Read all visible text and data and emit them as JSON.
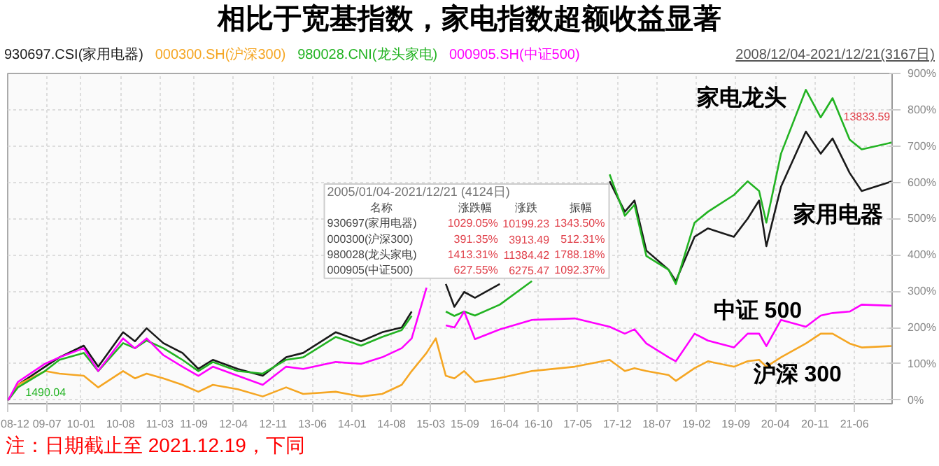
{
  "chart_data": {
    "type": "line",
    "title": "相比于宽基指数，家电指数超额收益显著",
    "x": [
      "2008-12-04",
      "2009-01-25",
      "2009-06-20",
      "2009-09-06",
      "2010-01-15",
      "2010-04-03",
      "2010-08-15",
      "2010-10-18",
      "2010-12-20",
      "2011-03-20",
      "2011-07-01",
      "2011-09-25",
      "2011-12-12",
      "2012-04-24",
      "2012-09-06",
      "2013-01-10",
      "2013-04-12",
      "2013-10-04",
      "2014-02-18",
      "2014-06-12",
      "2014-09-25",
      "2014-11-18",
      "2015-02-06",
      "2015-03-28",
      "2015-05-21",
      "2015-07-06",
      "2015-08-28",
      "2015-10-25",
      "2016-03-07",
      "2016-08-27",
      "2017-04-15",
      "2017-10-20",
      "2018-01-10",
      "2018-03-03",
      "2018-05-06",
      "2018-09-03",
      "2018-10-12",
      "2019-01-21",
      "2019-04-03",
      "2019-08-21",
      "2019-11-03",
      "2020-01-04",
      "2020-02-12",
      "2020-05-01",
      "2020-09-12",
      "2020-12-01",
      "2021-02-03",
      "2021-05-06",
      "2021-07-10",
      "2021-12-21"
    ],
    "series": [
      {
        "name": "930697.CSI(家用电器)",
        "color": "#1a1a1a",
        "values": [
          0,
          42,
          92,
          118,
          150,
          92,
          187,
          162,
          198,
          157,
          130,
          86,
          111,
          86,
          67,
          118,
          130,
          187,
          162,
          187,
          200,
          244,
          null,
          null,
          320,
          257,
          298,
          282,
          320,
          null,
          null,
          603,
          519,
          550,
          412,
          359,
          328,
          450,
          473,
          450,
          500,
          550,
          424,
          588,
          740,
          679,
          721,
          626,
          576,
          603
        ]
      },
      {
        "name": "000300.SH(沪深300)",
        "color": "#f5a623",
        "values": [
          0,
          42,
          80,
          73,
          67,
          35,
          80,
          60,
          73,
          60,
          42,
          23,
          42,
          30,
          10,
          35,
          17,
          23,
          10,
          17,
          42,
          80,
          130,
          170,
          67,
          60,
          80,
          50,
          61,
          80,
          92,
          111,
          80,
          88,
          80,
          69,
          53,
          88,
          107,
          92,
          107,
          111,
          92,
          118,
          156,
          183,
          183,
          156,
          145,
          149
        ]
      },
      {
        "name": "980028.CNI(龙头家电)",
        "color": "#22b322",
        "values": [
          0,
          35,
          80,
          111,
          130,
          80,
          157,
          143,
          164,
          143,
          111,
          80,
          105,
          80,
          73,
          111,
          118,
          174,
          150,
          174,
          193,
          232,
          null,
          null,
          244,
          232,
          244,
          233,
          263,
          328,
          null,
          622,
          508,
          538,
          397,
          359,
          320,
          489,
          519,
          565,
          603,
          576,
          489,
          679,
          855,
          779,
          832,
          718,
          691,
          710
        ]
      },
      {
        "name": "000905.SH(中证500)",
        "color": "#ff00ff",
        "values": [
          0,
          50,
          100,
          118,
          143,
          80,
          170,
          143,
          170,
          124,
          92,
          67,
          92,
          67,
          42,
          92,
          86,
          105,
          100,
          118,
          143,
          170,
          310,
          null,
          206,
          200,
          244,
          168,
          195,
          221,
          225,
          202,
          183,
          195,
          156,
          118,
          107,
          183,
          164,
          145,
          183,
          183,
          149,
          221,
          202,
          233,
          240,
          244,
          263,
          260
        ]
      }
    ],
    "xlim": [
      "2008-12-01",
      "2021-12-21"
    ],
    "xticks": [
      {
        "value": "2008-12-01",
        "label": "08-12"
      },
      {
        "value": "2009-07-01",
        "label": "09-07"
      },
      {
        "value": "2010-01-01",
        "label": "10-01"
      },
      {
        "value": "2010-08-01",
        "label": "10-08"
      },
      {
        "value": "2011-03-01",
        "label": "11-03"
      },
      {
        "value": "2011-09-01",
        "label": "11-09"
      },
      {
        "value": "2012-04-01",
        "label": "12-04"
      },
      {
        "value": "2012-11-01",
        "label": "12-11"
      },
      {
        "value": "2013-06-01",
        "label": "13-06"
      },
      {
        "value": "2014-01-01",
        "label": "14-01"
      },
      {
        "value": "2014-08-01",
        "label": "14-08"
      },
      {
        "value": "2015-03-01",
        "label": "15-03"
      },
      {
        "value": "2015-09-01",
        "label": "15-09"
      },
      {
        "value": "2016-04-01",
        "label": "16-04"
      },
      {
        "value": "2016-10-01",
        "label": "16-10"
      },
      {
        "value": "2017-05-01",
        "label": "17-05"
      },
      {
        "value": "2017-12-01",
        "label": "17-12"
      },
      {
        "value": "2018-07-01",
        "label": "18-07"
      },
      {
        "value": "2019-02-01",
        "label": "19-02"
      },
      {
        "value": "2019-09-01",
        "label": "19-09"
      },
      {
        "value": "2020-04-01",
        "label": "20-04"
      },
      {
        "value": "2020-11-01",
        "label": "20-11"
      },
      {
        "value": "2021-06-01",
        "label": "21-06"
      }
    ],
    "ylim": [
      -10,
      900
    ],
    "yticks": [
      {
        "value": 0,
        "label": "0%"
      },
      {
        "value": 100,
        "label": "100%"
      },
      {
        "value": 200,
        "label": "200%"
      },
      {
        "value": 300,
        "label": "300%"
      },
      {
        "value": 400,
        "label": "400%"
      },
      {
        "value": 500,
        "label": "500%"
      },
      {
        "value": 600,
        "label": "600%"
      },
      {
        "value": 700,
        "label": "700%"
      },
      {
        "value": 800,
        "label": "800%"
      },
      {
        "value": 900,
        "label": "900%"
      }
    ],
    "grid": true,
    "legend": "top left",
    "annotations": [
      "家电龙头",
      "家用电器",
      "中证 500",
      "沪深 300",
      "13833.59",
      "1490.04",
      "2008/12/04-2021/12/21(3167日)",
      "2005/01/04-2021/12/21 (4124日)",
      "名称",
      "涨跌幅",
      "涨跌",
      "振幅",
      "930697(家用电器)",
      "1029.05%",
      "10199.23",
      "1343.50%",
      "000300(沪深300)",
      "391.35%",
      "3913.49",
      "512.31%",
      "980028(龙头家电)",
      "1413.31%",
      "11384.42",
      "1788.18%",
      "000905(中证500)",
      "627.55%",
      "6275.47",
      "1092.37%",
      "注：日期截止至 2021.12.19，下同"
    ]
  }
}
